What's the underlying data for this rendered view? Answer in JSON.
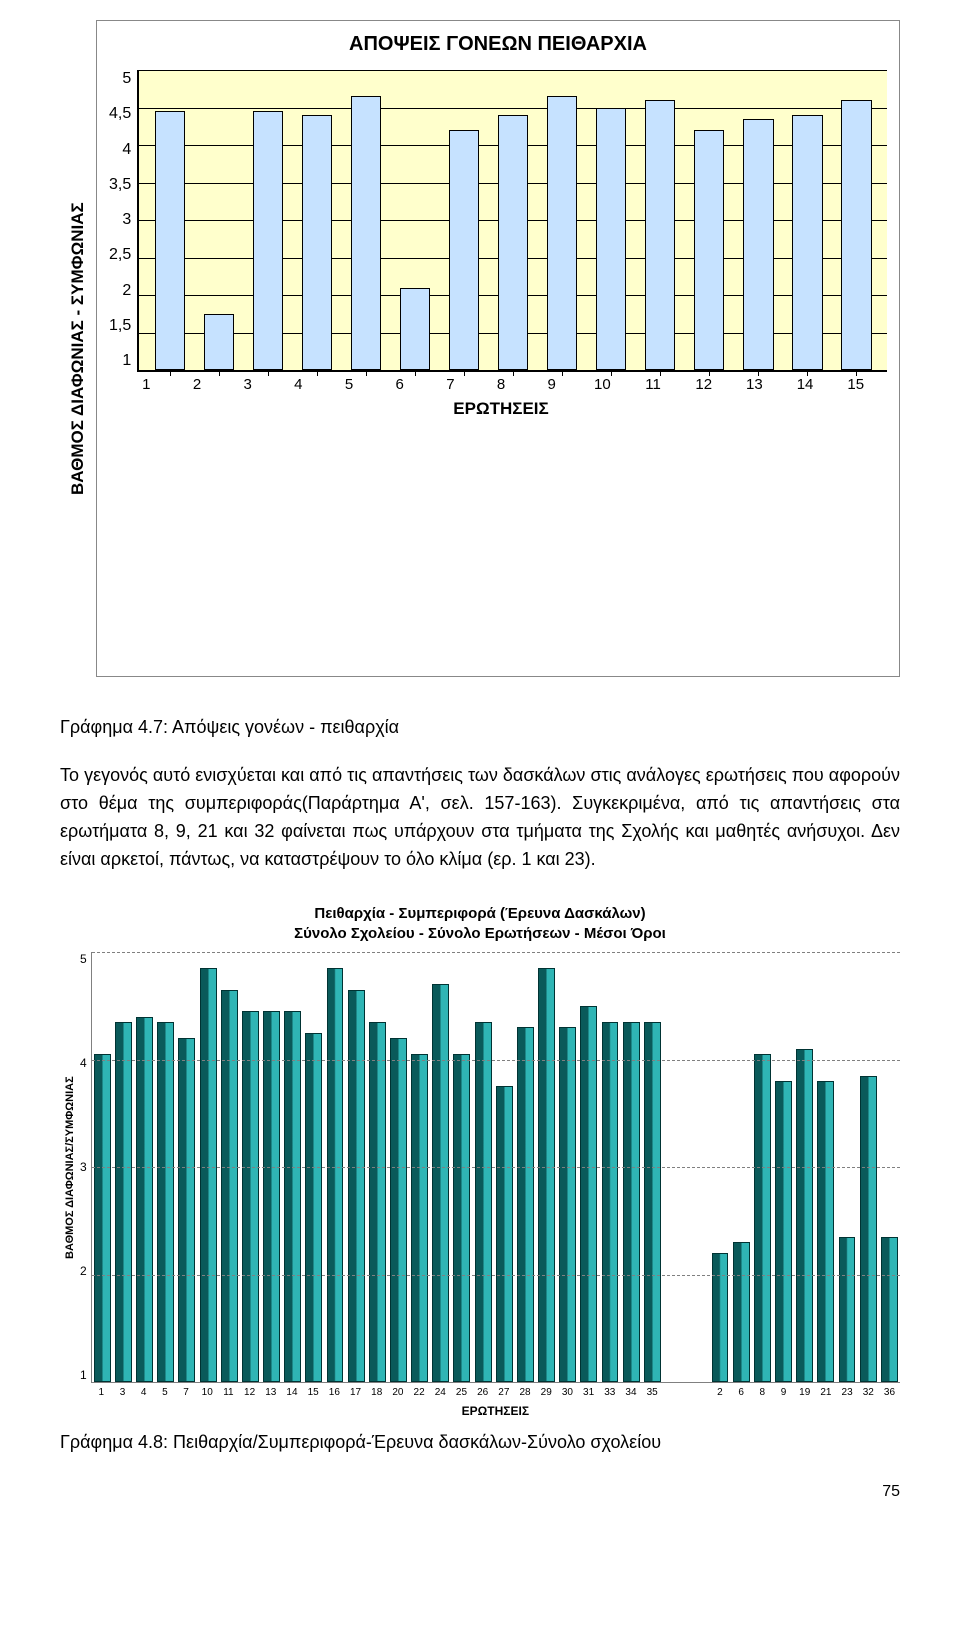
{
  "chart1": {
    "type": "bar",
    "title": "ΑΠΟΨΕΙΣ ΓΟΝΕΩΝ ΠΕΙΘΑΡΧΙΑ",
    "ylabel": "ΒΑΘΜΟΣ ΔΙΑΦΩΝΙΑΣ - ΣΥΜΦΩΝΙΑΣ",
    "xlabel": "ΕΡΩΤΗΣΕΙΣ",
    "ylim": [
      1,
      5
    ],
    "ytick_step": 0.5,
    "yticks": [
      "5",
      "4,5",
      "4",
      "3,5",
      "3",
      "2,5",
      "2",
      "1,5",
      "1"
    ],
    "categories": [
      "1",
      "2",
      "3",
      "4",
      "5",
      "6",
      "7",
      "8",
      "9",
      "10",
      "11",
      "12",
      "13",
      "14",
      "15"
    ],
    "values": [
      4.45,
      1.75,
      4.45,
      4.4,
      4.65,
      2.1,
      4.2,
      4.4,
      4.65,
      4.5,
      4.6,
      4.2,
      4.35,
      4.4,
      4.6
    ],
    "bar_color": "#c6e2ff",
    "bar_border": "#000000",
    "bar_width": 0.62,
    "background_color": "#ffffcc",
    "grid_color": "#000000",
    "title_fontsize": 20,
    "label_fontsize": 17,
    "tick_fontsize": 15
  },
  "caption1": "Γράφημα 4.7: Απόψεις γονέων - πειθαρχία",
  "body": "Το γεγονός αυτό ενισχύεται και από τις απαντήσεις των δασκάλων στις ανάλογες ερωτήσεις που αφορούν στο θέμα της συμπεριφοράς(Παράρτημα Α', σελ. 157-163). Συγκεκριμένα, από τις απαντήσεις στα ερωτήματα 8, 9, 21 και 32 φαίνεται πως υπάρχουν στα τμήματα της Σχολής και μαθητές ανήσυχοι. Δεν είναι αρκετοί, πάντως, να καταστρέψουν το όλο κλίμα (ερ. 1 και 23).",
  "chart2": {
    "type": "bar",
    "title_line1": "Πειθαρχία - Συμπεριφορά (Έρευνα Δασκάλων)",
    "title_line2": "Σύνολο Σχολείου - Σύνολο Ερωτήσεων - Μέσοι Όροι",
    "ylabel": "ΒΑΘΜΟΣ ΔΙΑΦΩΝΙΑΣ/ΣΥΜΦΩΝΙΑΣ",
    "xlabel": "ΕΡΩΤΗΣΕΙΣ",
    "ylim": [
      1,
      5
    ],
    "ytick_step": 1,
    "yticks": [
      "5",
      "4",
      "3",
      "2",
      "1"
    ],
    "categories_g1": [
      "1",
      "3",
      "4",
      "5",
      "7",
      "10",
      "11",
      "12",
      "13",
      "14",
      "15",
      "16",
      "17",
      "18",
      "20",
      "22",
      "24",
      "25",
      "26",
      "27",
      "28",
      "29",
      "30",
      "31",
      "33",
      "34",
      "35"
    ],
    "values_g1": [
      4.05,
      4.35,
      4.4,
      4.35,
      4.2,
      4.85,
      4.65,
      4.45,
      4.45,
      4.45,
      4.25,
      4.85,
      4.65,
      4.35,
      4.2,
      4.05,
      4.7,
      4.05,
      4.35,
      3.75,
      4.3,
      4.85,
      4.3,
      4.5,
      4.35,
      4.35,
      4.35
    ],
    "categories_g2": [
      "2",
      "6",
      "8",
      "9",
      "19",
      "21",
      "23",
      "32",
      "36"
    ],
    "values_g2": [
      2.2,
      2.3,
      4.05,
      3.8,
      4.1,
      3.8,
      2.35,
      3.85,
      2.35
    ],
    "bar_fill_left": "#0a5a5a",
    "bar_fill_right": "#2fb5b5",
    "bar_border": "#003333",
    "bar_width": 0.8,
    "grid_color": "#808080",
    "grid_style": "dashed",
    "background_color": "#ffffff",
    "title_fontsize": 15,
    "label_fontsize": 12,
    "tick_fontsize": 10
  },
  "caption2": "Γράφημα 4.8: Πειθαρχία/Συμπεριφορά-Έρευνα δασκάλων-Σύνολο σχολείου",
  "pagenum": "75"
}
